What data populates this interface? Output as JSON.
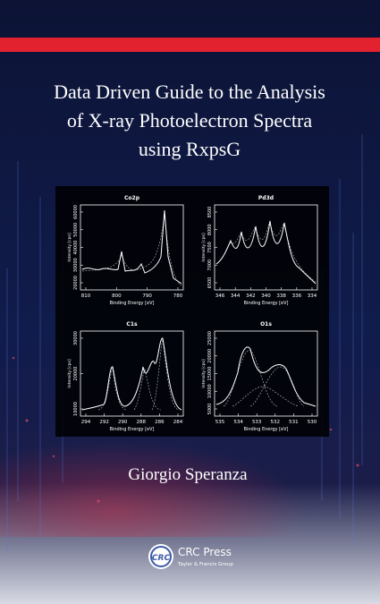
{
  "title_lines": [
    "Data Driven Guide to the Analysis",
    "of X-ray Photoelectron Spectra",
    "using RxpsG"
  ],
  "panels": [
    {
      "title": "Co2p",
      "y_label": "Intensity [cps]",
      "x_label": "Binding Energy [eV]",
      "yticks": [
        "20000",
        "30000",
        "40000",
        "50000",
        "60000"
      ],
      "xticks": [
        "810",
        "800",
        "790",
        "780"
      ]
    },
    {
      "title": "Pd3d",
      "y_label": "Intensity [cps]",
      "x_label": "Binding Energy [eV]",
      "yticks": [
        "6500",
        "7000",
        "7500",
        "8000",
        "8500"
      ],
      "xticks": [
        "346",
        "344",
        "342",
        "340",
        "338",
        "336",
        "334"
      ]
    },
    {
      "title": "C1s",
      "y_label": "Intensity [cps]",
      "x_label": "Binding Energy [eV]",
      "yticks": [
        "10000",
        "20000",
        "30000"
      ],
      "xticks": [
        "294",
        "292",
        "290",
        "288",
        "286",
        "284"
      ]
    },
    {
      "title": "O1s",
      "y_label": "Intensity [cps]",
      "x_label": "Binding Energy [eV]",
      "yticks": [
        "5000",
        "10000",
        "15000",
        "20000",
        "25000"
      ],
      "xticks": [
        "535",
        "534",
        "533",
        "532",
        "531",
        "530"
      ]
    }
  ],
  "author": "Giorgio Speranza",
  "publisher": {
    "logo": "CRC",
    "name": "CRC Press",
    "group": "Taylor & Francis Group"
  }
}
